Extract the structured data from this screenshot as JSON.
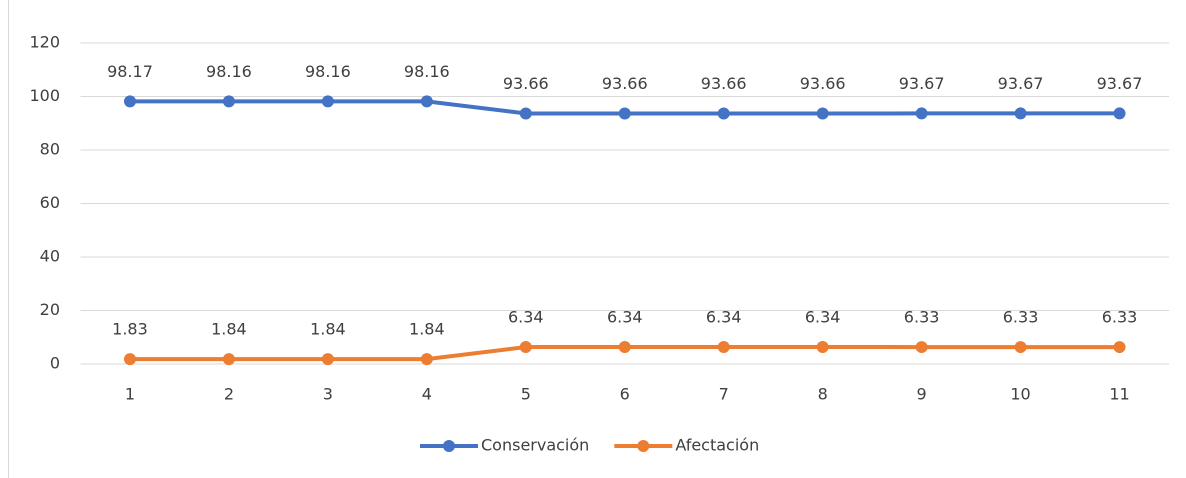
{
  "chart_data": {
    "type": "line",
    "categories": [
      "1",
      "2",
      "3",
      "4",
      "5",
      "6",
      "7",
      "8",
      "9",
      "10",
      "11"
    ],
    "series": [
      {
        "name": "Conservación",
        "color": "#4472c4",
        "values": [
          98.17,
          98.16,
          98.16,
          98.16,
          93.66,
          93.66,
          93.66,
          93.66,
          93.67,
          93.67,
          93.67
        ]
      },
      {
        "name": "Afectación",
        "color": "#ed7d31",
        "values": [
          1.83,
          1.84,
          1.84,
          1.84,
          6.34,
          6.34,
          6.34,
          6.34,
          6.33,
          6.33,
          6.33
        ]
      }
    ],
    "ylim": [
      0,
      120
    ],
    "yticks": [
      0,
      20,
      40,
      60,
      80,
      100,
      120
    ],
    "grid": true,
    "legend": "bottom"
  }
}
